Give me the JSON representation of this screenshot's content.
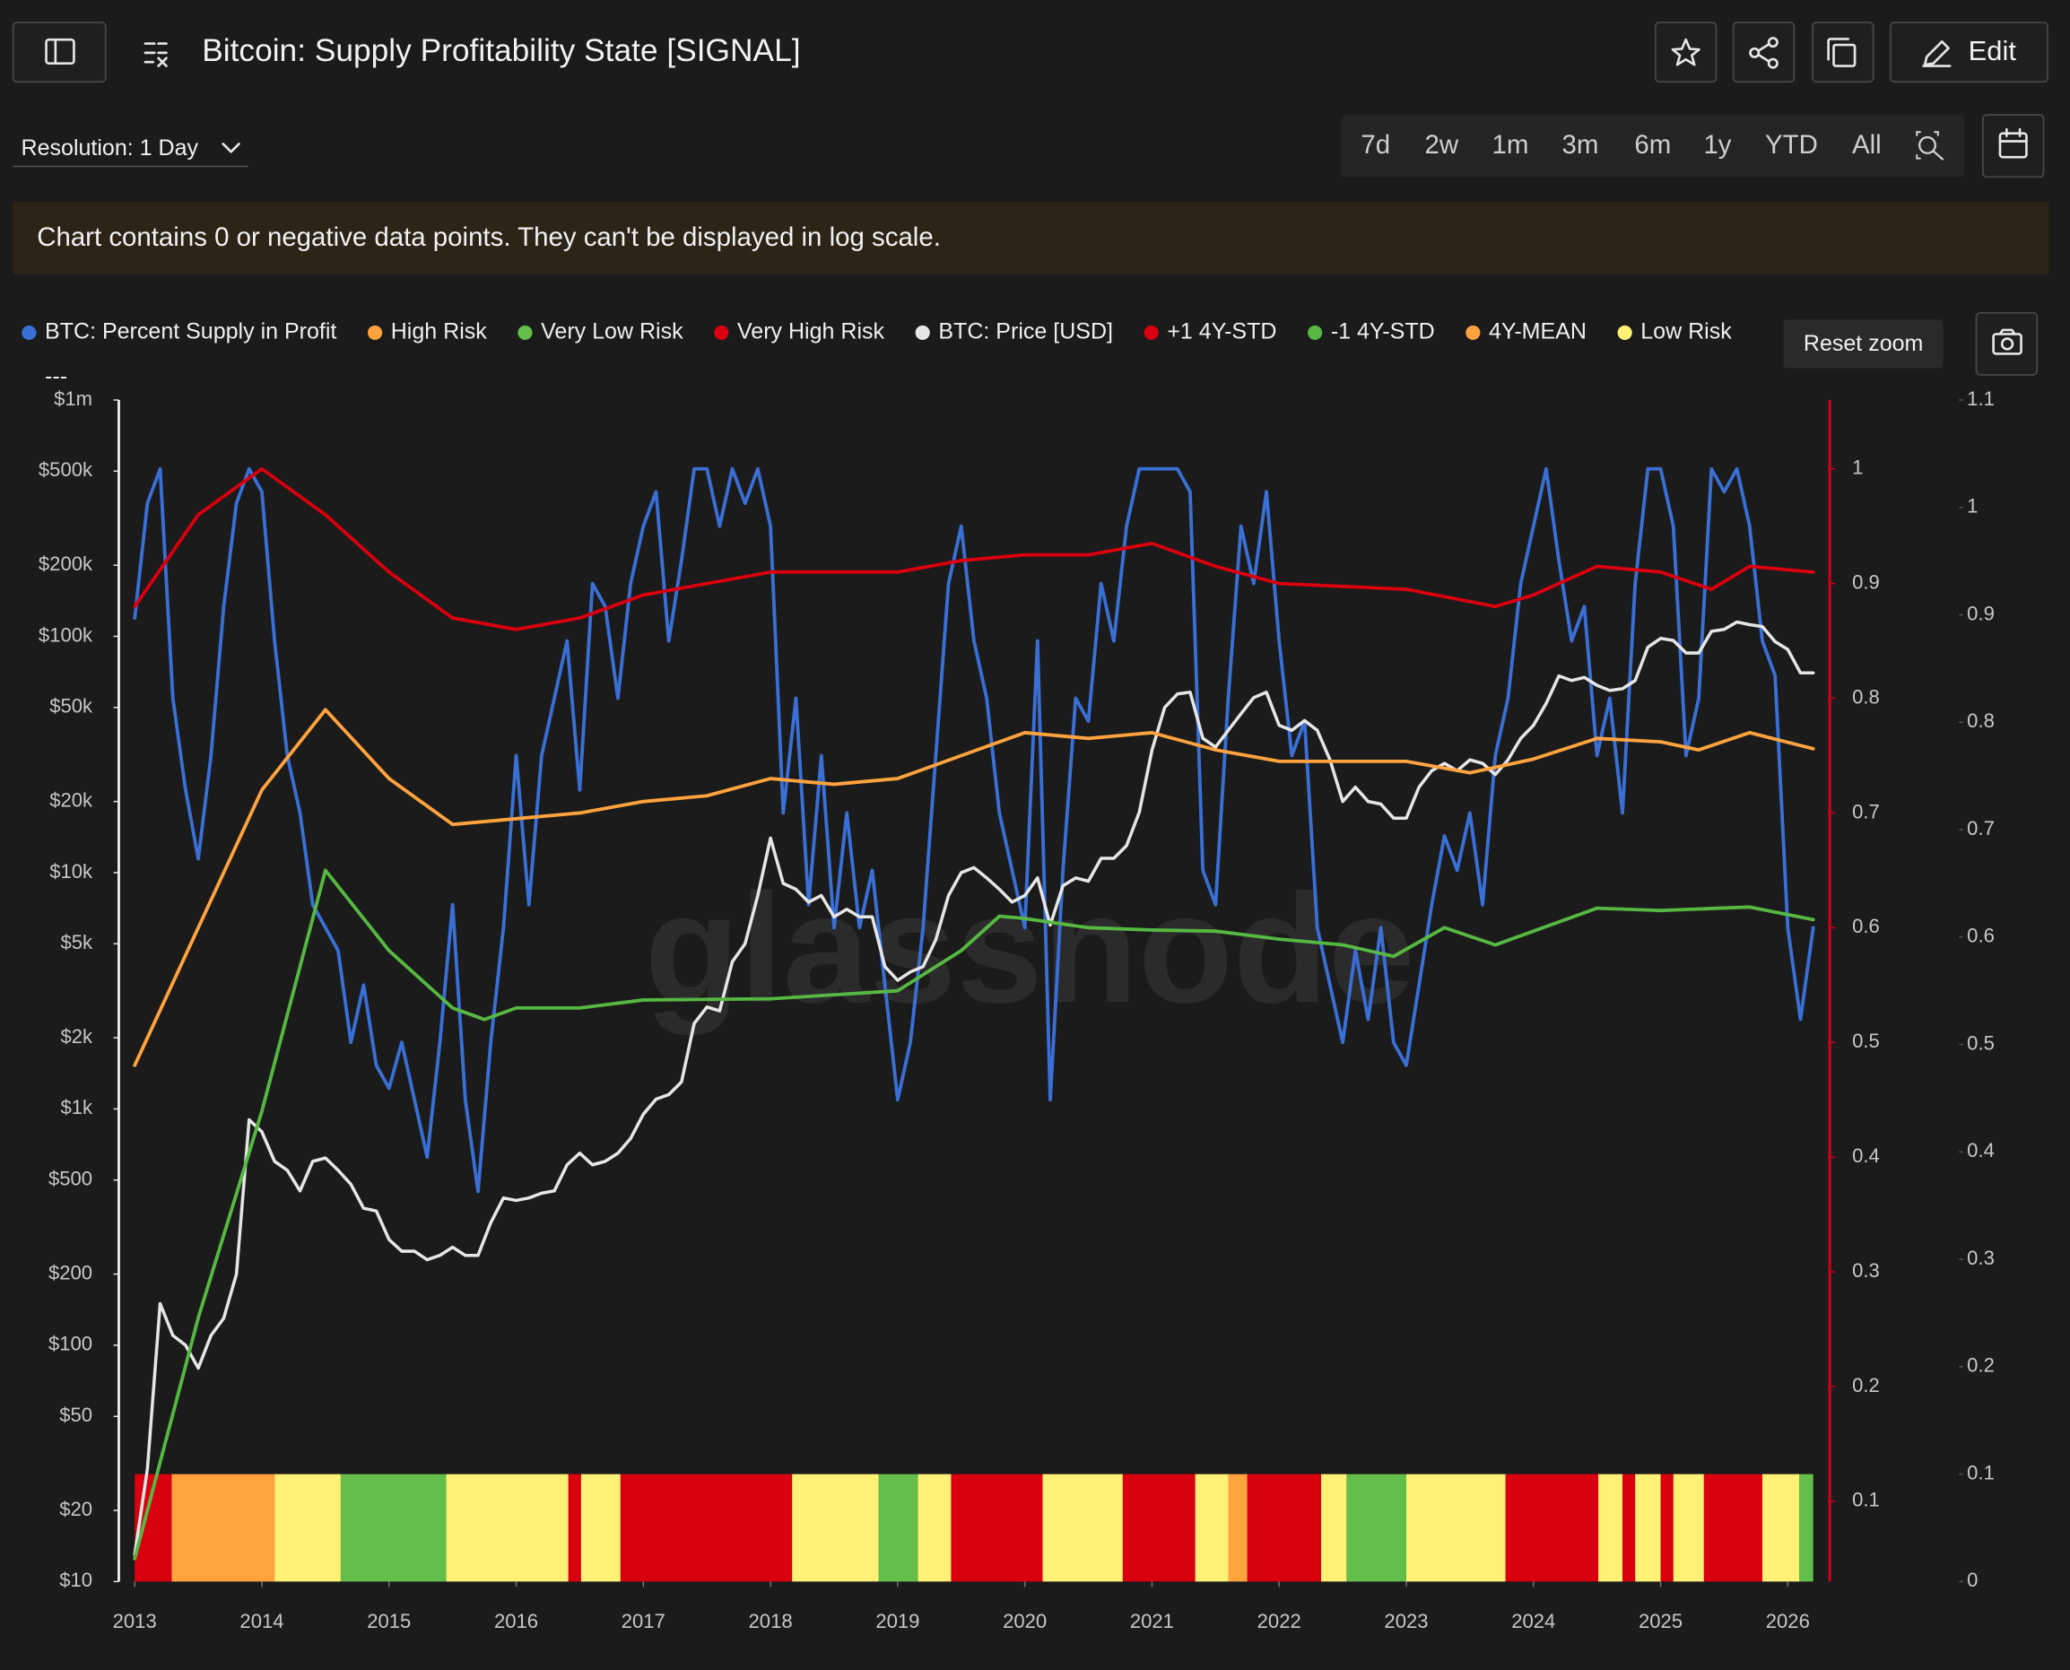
{
  "header": {
    "title": "Bitcoin: Supply Profitability State [SIGNAL]",
    "edit": "Edit"
  },
  "controls": {
    "resolution": "Resolution: 1 Day",
    "ranges": [
      "7d",
      "2w",
      "1m",
      "3m",
      "6m",
      "1y",
      "YTD",
      "All"
    ],
    "reset_zoom": "Reset zoom"
  },
  "notice": "Chart contains 0 or negative data points. They can't be displayed in log scale.",
  "chart_data": {
    "type": "line",
    "log_scale": true,
    "grid": false,
    "watermark": "glassnode",
    "legend_note": "---",
    "y2_axis_color": "#d7001a",
    "xlim": [
      2012.875,
      2026.33
    ],
    "xticks": [
      2013,
      2014,
      2015,
      2016,
      2017,
      2018,
      2019,
      2020,
      2021,
      2022,
      2023,
      2024,
      2025,
      2026
    ],
    "ylim": [
      10,
      1000000
    ],
    "yticks": [
      {
        "value": 10,
        "label": "$10"
      },
      {
        "value": 20,
        "label": "$20"
      },
      {
        "value": 50,
        "label": "$50"
      },
      {
        "value": 100,
        "label": "$100"
      },
      {
        "value": 200,
        "label": "$200"
      },
      {
        "value": 500,
        "label": "$500"
      },
      {
        "value": 1000,
        "label": "$1k"
      },
      {
        "value": 2000,
        "label": "$2k"
      },
      {
        "value": 5000,
        "label": "$5k"
      },
      {
        "value": 10000,
        "label": "$10k"
      },
      {
        "value": 20000,
        "label": "$20k"
      },
      {
        "value": 50000,
        "label": "$50k"
      },
      {
        "value": 100000,
        "label": "$100k"
      },
      {
        "value": 200000,
        "label": "$200k"
      },
      {
        "value": 500000,
        "label": "$500k"
      },
      {
        "value": 1000000,
        "label": "$1m"
      }
    ],
    "y2lim": [
      0.03,
      1.06
    ],
    "y2ticks": [
      0.1,
      0.2,
      0.3,
      0.4,
      0.5,
      0.6,
      0.7,
      0.8,
      0.9,
      1
    ],
    "y3lim": [
      0,
      1.1
    ],
    "y3ticks": [
      0,
      0.1,
      0.2,
      0.3,
      0.4,
      0.5,
      0.6,
      0.7,
      0.8,
      0.9,
      1,
      1.1
    ],
    "x": [
      2013,
      2013.1,
      2013.2,
      2013.3,
      2013.4,
      2013.5,
      2013.6,
      2013.7,
      2013.8,
      2013.9,
      2014,
      2014.1,
      2014.2,
      2014.3,
      2014.4,
      2014.5,
      2014.6,
      2014.7,
      2014.8,
      2014.9,
      2015,
      2015.1,
      2015.2,
      2015.3,
      2015.4,
      2015.5,
      2015.6,
      2015.7,
      2015.8,
      2015.9,
      2016,
      2016.1,
      2016.2,
      2016.3,
      2016.4,
      2016.5,
      2016.6,
      2016.7,
      2016.8,
      2016.9,
      2017,
      2017.1,
      2017.2,
      2017.3,
      2017.4,
      2017.5,
      2017.6,
      2017.7,
      2017.8,
      2017.9,
      2018,
      2018.1,
      2018.2,
      2018.3,
      2018.4,
      2018.5,
      2018.6,
      2018.7,
      2018.8,
      2018.9,
      2019,
      2019.1,
      2019.2,
      2019.3,
      2019.4,
      2019.5,
      2019.6,
      2019.7,
      2019.8,
      2019.9,
      2020,
      2020.1,
      2020.2,
      2020.3,
      2020.4,
      2020.5,
      2020.6,
      2020.7,
      2020.8,
      2020.9,
      2021,
      2021.1,
      2021.2,
      2021.3,
      2021.4,
      2021.5,
      2021.6,
      2021.7,
      2021.8,
      2021.9,
      2022,
      2022.1,
      2022.2,
      2022.3,
      2022.4,
      2022.5,
      2022.6,
      2022.7,
      2022.8,
      2022.9,
      2023,
      2023.1,
      2023.2,
      2023.3,
      2023.4,
      2023.5,
      2023.6,
      2023.7,
      2023.8,
      2023.9,
      2024,
      2024.1,
      2024.2,
      2024.3,
      2024.4,
      2024.5,
      2024.6,
      2024.7,
      2024.8,
      2024.9,
      2025,
      2025.1,
      2025.2,
      2025.3,
      2025.4,
      2025.5,
      2025.6,
      2025.7,
      2025.8,
      2025.9,
      2026,
      2026.1,
      2026.2
    ],
    "series": [
      {
        "name": "BTC: Percent Supply in Profit",
        "type": "line",
        "color": "#3a6fd6",
        "axis": "y2",
        "values": [
          0.87,
          0.97,
          1.0,
          0.8,
          0.72,
          0.66,
          0.75,
          0.88,
          0.97,
          1.0,
          0.98,
          0.85,
          0.75,
          0.7,
          0.62,
          0.6,
          0.58,
          0.5,
          0.55,
          0.48,
          0.46,
          0.5,
          0.45,
          0.4,
          0.5,
          0.62,
          0.45,
          0.37,
          0.5,
          0.6,
          0.75,
          0.62,
          0.75,
          0.8,
          0.85,
          0.72,
          0.9,
          0.88,
          0.8,
          0.9,
          0.95,
          0.98,
          0.85,
          0.92,
          1.0,
          1.0,
          0.95,
          1.0,
          0.97,
          1.0,
          0.95,
          0.7,
          0.8,
          0.62,
          0.75,
          0.6,
          0.7,
          0.6,
          0.65,
          0.55,
          0.45,
          0.5,
          0.6,
          0.75,
          0.9,
          0.95,
          0.85,
          0.8,
          0.7,
          0.65,
          0.6,
          0.85,
          0.45,
          0.65,
          0.8,
          0.78,
          0.9,
          0.85,
          0.95,
          1.0,
          1.0,
          1.0,
          1.0,
          0.98,
          0.65,
          0.62,
          0.8,
          0.95,
          0.9,
          0.98,
          0.85,
          0.75,
          0.78,
          0.6,
          0.55,
          0.5,
          0.58,
          0.52,
          0.6,
          0.5,
          0.48,
          0.55,
          0.62,
          0.68,
          0.65,
          0.7,
          0.62,
          0.75,
          0.8,
          0.9,
          0.95,
          1.0,
          0.92,
          0.85,
          0.88,
          0.75,
          0.8,
          0.7,
          0.9,
          1.0,
          1.0,
          0.95,
          0.75,
          0.8,
          1.0,
          0.98,
          1.0,
          0.95,
          0.85,
          0.82,
          0.6,
          0.52,
          0.6
        ]
      },
      {
        "name": "High Risk",
        "type": "band",
        "color": "#ffa33e",
        "axis": "y3",
        "value": 0.1,
        "intervals": [
          [
            2013.29,
            2014.1
          ],
          [
            2021.6,
            2021.75
          ]
        ]
      },
      {
        "name": "Very Low Risk",
        "type": "band",
        "color": "#63be4a",
        "axis": "y3",
        "value": 0.1,
        "intervals": [
          [
            2014.62,
            2015.45
          ],
          [
            2018.85,
            2019.16
          ],
          [
            2022.53,
            2023.0
          ],
          [
            2026.09,
            2026.2
          ]
        ]
      },
      {
        "name": "Very High Risk",
        "type": "band",
        "color": "#d9000f",
        "axis": "y3",
        "value": 0.1,
        "intervals": [
          [
            2013.0,
            2013.29
          ],
          [
            2016.41,
            2016.51
          ],
          [
            2016.82,
            2018.17
          ],
          [
            2019.42,
            2020.14
          ],
          [
            2020.77,
            2021.34
          ],
          [
            2021.75,
            2022.33
          ],
          [
            2023.78,
            2024.51
          ],
          [
            2024.7,
            2024.8
          ],
          [
            2025.0,
            2025.1
          ],
          [
            2025.34,
            2025.8
          ]
        ]
      },
      {
        "name": "BTC: Price [USD]",
        "type": "line",
        "color": "#e6e6e6",
        "axis": "y",
        "values": [
          13,
          30,
          150,
          110,
          100,
          80,
          110,
          130,
          200,
          900,
          800,
          600,
          550,
          450,
          600,
          620,
          550,
          480,
          380,
          370,
          280,
          250,
          250,
          230,
          240,
          260,
          240,
          240,
          330,
          420,
          410,
          420,
          440,
          450,
          580,
          650,
          580,
          600,
          650,
          750,
          950,
          1100,
          1150,
          1300,
          2300,
          2700,
          2600,
          4200,
          5000,
          8000,
          14000,
          9000,
          8500,
          7500,
          8000,
          6500,
          7000,
          6500,
          6500,
          4000,
          3500,
          3800,
          4000,
          5200,
          8000,
          10000,
          10500,
          9500,
          8500,
          7500,
          8000,
          9500,
          6000,
          8800,
          9500,
          9200,
          11500,
          11500,
          13000,
          18000,
          33000,
          50000,
          57000,
          58000,
          37000,
          34000,
          40000,
          47000,
          55000,
          58000,
          42000,
          40000,
          44000,
          40000,
          30000,
          20000,
          23000,
          20000,
          19500,
          17000,
          17000,
          23000,
          27000,
          29000,
          27000,
          30000,
          29000,
          26000,
          30000,
          37000,
          42000,
          52000,
          68000,
          65000,
          67000,
          62000,
          59000,
          60000,
          65000,
          90000,
          98000,
          96000,
          85000,
          85000,
          105000,
          107000,
          115000,
          112000,
          110000,
          95000,
          88000,
          70000,
          70000
        ]
      },
      {
        "name": "+1 4Y-STD",
        "type": "line",
        "color": "#d9000f",
        "axis": "y2",
        "x": [
          2013,
          2013.5,
          2014,
          2014.5,
          2015,
          2015.5,
          2016,
          2016.5,
          2017,
          2017.5,
          2018,
          2019,
          2019.5,
          2020,
          2020.5,
          2021,
          2021.5,
          2022,
          2023,
          2023.7,
          2024,
          2024.5,
          2025,
          2025.4,
          2025.7,
          2026.2
        ],
        "values": [
          0.88,
          0.96,
          1.0,
          0.96,
          0.91,
          0.87,
          0.86,
          0.87,
          0.89,
          0.9,
          0.91,
          0.91,
          0.92,
          0.925,
          0.925,
          0.935,
          0.915,
          0.9,
          0.895,
          0.88,
          0.89,
          0.915,
          0.91,
          0.895,
          0.915,
          0.91
        ]
      },
      {
        "name": "-1 4Y-STD",
        "type": "line",
        "color": "#56b842",
        "axis": "y2",
        "x": [
          2013,
          2013.5,
          2014,
          2014.5,
          2015,
          2015.5,
          2015.75,
          2016,
          2016.5,
          2017,
          2018,
          2019,
          2019.5,
          2019.8,
          2020,
          2020.5,
          2021,
          2021.5,
          2022,
          2022.5,
          2022.9,
          2023.3,
          2023.7,
          2024,
          2024.5,
          2025,
          2025.7,
          2026.2
        ],
        "values": [
          0.05,
          0.26,
          0.44,
          0.65,
          0.58,
          0.53,
          0.52,
          0.53,
          0.53,
          0.537,
          0.538,
          0.545,
          0.58,
          0.61,
          0.608,
          0.6,
          0.598,
          0.597,
          0.59,
          0.585,
          0.575,
          0.6,
          0.585,
          0.597,
          0.617,
          0.615,
          0.618,
          0.607
        ]
      },
      {
        "name": "4Y-MEAN",
        "type": "line",
        "color": "#ffa33e",
        "axis": "y2",
        "x": [
          2013,
          2013.5,
          2014,
          2014.5,
          2015,
          2015.5,
          2016,
          2016.5,
          2017,
          2017.5,
          2018,
          2018.5,
          2019,
          2019.5,
          2020,
          2020.5,
          2021,
          2021.5,
          2022,
          2022.5,
          2023,
          2023.5,
          2024,
          2024.5,
          2025,
          2025.3,
          2025.7,
          2026.2
        ],
        "values": [
          0.48,
          0.6,
          0.72,
          0.79,
          0.73,
          0.69,
          0.695,
          0.7,
          0.71,
          0.715,
          0.73,
          0.725,
          0.73,
          0.75,
          0.77,
          0.765,
          0.77,
          0.755,
          0.745,
          0.745,
          0.745,
          0.735,
          0.747,
          0.765,
          0.762,
          0.755,
          0.77,
          0.756
        ]
      },
      {
        "name": "Low Risk",
        "type": "band",
        "color": "#fff176",
        "axis": "y3",
        "value": 0.1,
        "intervals": [
          [
            2014.1,
            2014.62
          ],
          [
            2015.45,
            2016.41
          ],
          [
            2016.51,
            2016.82
          ],
          [
            2018.17,
            2018.85
          ],
          [
            2019.16,
            2019.42
          ],
          [
            2020.14,
            2020.77
          ],
          [
            2021.34,
            2021.6
          ],
          [
            2022.33,
            2022.53
          ],
          [
            2023.0,
            2023.78
          ],
          [
            2024.51,
            2024.7
          ],
          [
            2024.8,
            2025.0
          ],
          [
            2025.1,
            2025.34
          ],
          [
            2025.8,
            2026.09
          ]
        ]
      }
    ]
  }
}
